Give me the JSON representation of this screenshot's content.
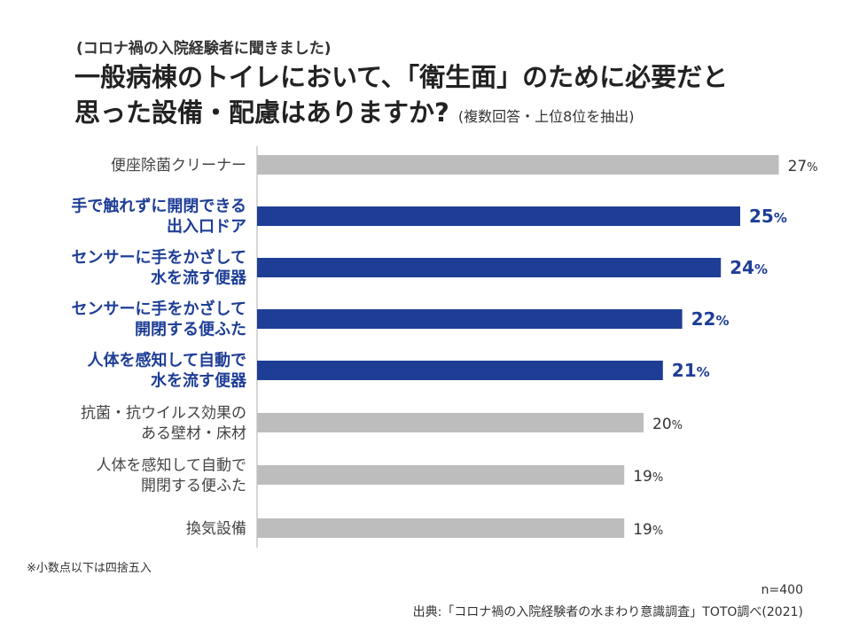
{
  "header": {
    "subtitle": "(コロナ禍の入院経験者に聞きました)",
    "title_line1": "一般病棟のトイレにおいて、「衛生面」のために必要だと",
    "title_line2": "思った設備・配慮はありますか?",
    "title_note": "(複数回答・上位8位を抽出)"
  },
  "chart_data": {
    "type": "bar",
    "orientation": "horizontal",
    "unit": "%",
    "categories": [
      [
        "便座除菌クリーナー"
      ],
      [
        "手で触れずに開閉できる",
        "出入口ドア"
      ],
      [
        "センサーに手をかざして",
        "水を流す便器"
      ],
      [
        "センサーに手をかざして",
        "開閉する便ふた"
      ],
      [
        "人体を感知して自動で",
        "水を流す便器"
      ],
      [
        "抗菌・抗ウイルス効果の",
        "ある壁材・床材"
      ],
      [
        "人体を感知して自動で",
        "開閉する便ふた"
      ],
      [
        "換気設備"
      ]
    ],
    "values": [
      27,
      25,
      24,
      22,
      21,
      20,
      19,
      19
    ],
    "highlighted": [
      false,
      true,
      true,
      true,
      true,
      false,
      false,
      false
    ],
    "colors": {
      "default": "#bdbdbd",
      "highlight": "#1e3e96",
      "axis": "#c8c8c8"
    },
    "value_suffix": "%"
  },
  "footer": {
    "footnote": "※小数点以下は四捨五入",
    "sample_size": "n=400",
    "source": "出典:「コロナ禍の入院経験者の水まわり意識調査」TOTO調べ(2021)"
  }
}
